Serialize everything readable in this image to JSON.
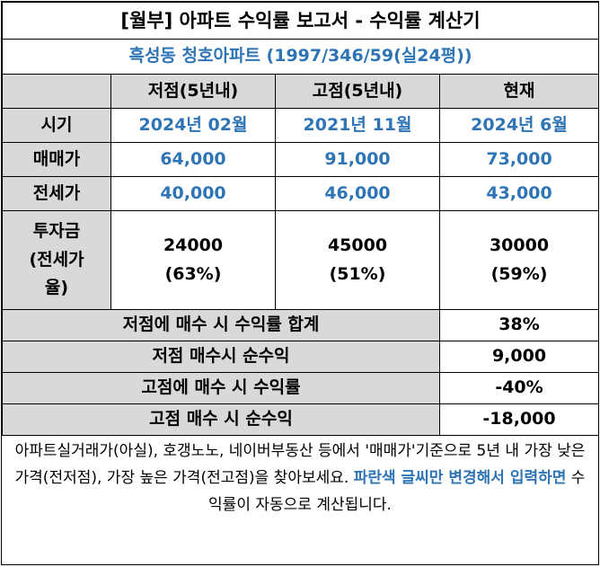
{
  "title": "[월부] 아파트 수익률 보고서 - 수익률 계산기",
  "apartment": "흑성동 청호아파트 (1997/346/59(실24평))",
  "columns": [
    "저점(5년내)",
    "고점(5년내)",
    "현재"
  ],
  "rows": {
    "period": {
      "label": "시기",
      "values": [
        "2024년 02월",
        "2021년 11월",
        "2024년 6월"
      ]
    },
    "sale_price": {
      "label": "매매가",
      "values": [
        "64,000",
        "91,000",
        "73,000"
      ]
    },
    "jeonse_price": {
      "label": "전세가",
      "values": [
        "40,000",
        "46,000",
        "43,000"
      ]
    },
    "investment": {
      "label_lines": [
        "투자금",
        "(전세가",
        "율)"
      ],
      "values": [
        {
          "amount": "24000",
          "ratio": "(63%)"
        },
        {
          "amount": "45000",
          "ratio": "(51%)"
        },
        {
          "amount": "30000",
          "ratio": "(59%)"
        }
      ]
    }
  },
  "summary": [
    {
      "label": "저점에 매수 시 수익률 합계",
      "value": "38%"
    },
    {
      "label": "저점 매수시 순수익",
      "value": "9,000"
    },
    {
      "label": "고점에 매수 시 수익률",
      "value": "-40%"
    },
    {
      "label": "고점 매수 시 순수익",
      "value": "-18,000"
    }
  ],
  "note": {
    "part1": "아파트실거래가(아실), 호갱노노, 네이버부동산 등에서 '매매가'기준으로 5년 내 가장 낮은 가격(전저점), 가장 높은 가격(전고점)을 찾아보세요. ",
    "highlight": "파란색 글씨만 변경해서 입력하면",
    "part2": " 수익률이 자동으로 계산됩니다."
  },
  "colors": {
    "accent_blue": "#2f75b5",
    "header_gray": "#d9d9d9"
  }
}
